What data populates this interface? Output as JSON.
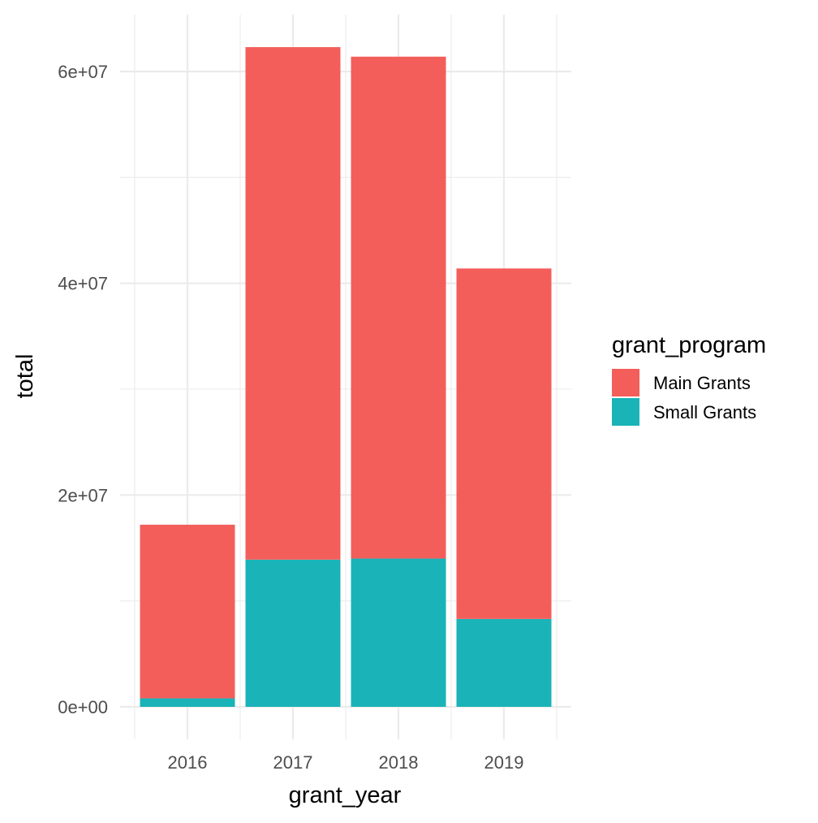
{
  "chart_data": {
    "type": "bar",
    "stacked": true,
    "title": "",
    "xlabel": "grant_year",
    "ylabel": "total",
    "categories": [
      "2016",
      "2017",
      "2018",
      "2019"
    ],
    "series": [
      {
        "name": "Main Grants",
        "color": "#F35E5A",
        "values": [
          16400000,
          48400000,
          47400000,
          33100000
        ]
      },
      {
        "name": "Small Grants",
        "color": "#19B3B8",
        "values": [
          800000,
          13900000,
          14000000,
          8300000
        ]
      }
    ],
    "ylim": [
      -2500000,
      65000000
    ],
    "yticks": [
      0,
      20000000,
      40000000,
      60000000
    ],
    "ytick_labels": [
      "0e+00",
      "2e+07",
      "4e+07",
      "6e+07"
    ],
    "grid": true,
    "theme": "minimal",
    "legend": {
      "title": "grant_program",
      "position": "right",
      "entries": [
        "Main Grants",
        "Small Grants"
      ]
    }
  }
}
